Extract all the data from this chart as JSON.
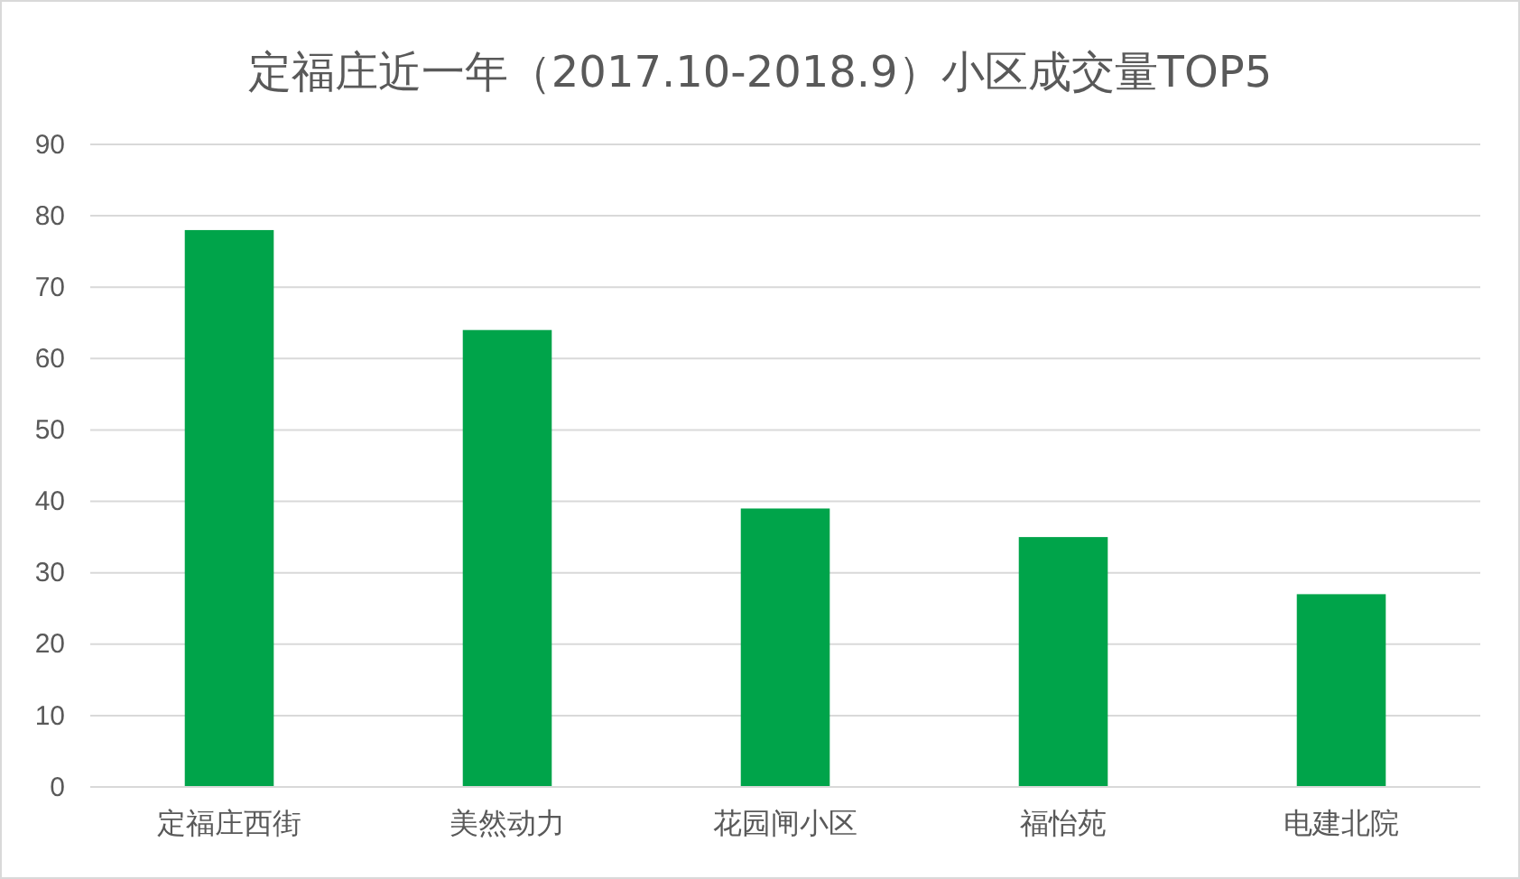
{
  "chart_data": {
    "type": "bar",
    "title": "定福庄近一年（2017.10-2018.9）小区成交量TOP5",
    "categories": [
      "定福庄西街",
      "美然动力",
      "花园闸小区",
      "福怡苑",
      "电建北院"
    ],
    "values": [
      78,
      64,
      39,
      35,
      27
    ],
    "color": "#00a44a",
    "ylim": [
      0,
      90
    ],
    "yticks": [
      0,
      10,
      20,
      30,
      40,
      50,
      60,
      70,
      80,
      90
    ],
    "grid": "y"
  }
}
